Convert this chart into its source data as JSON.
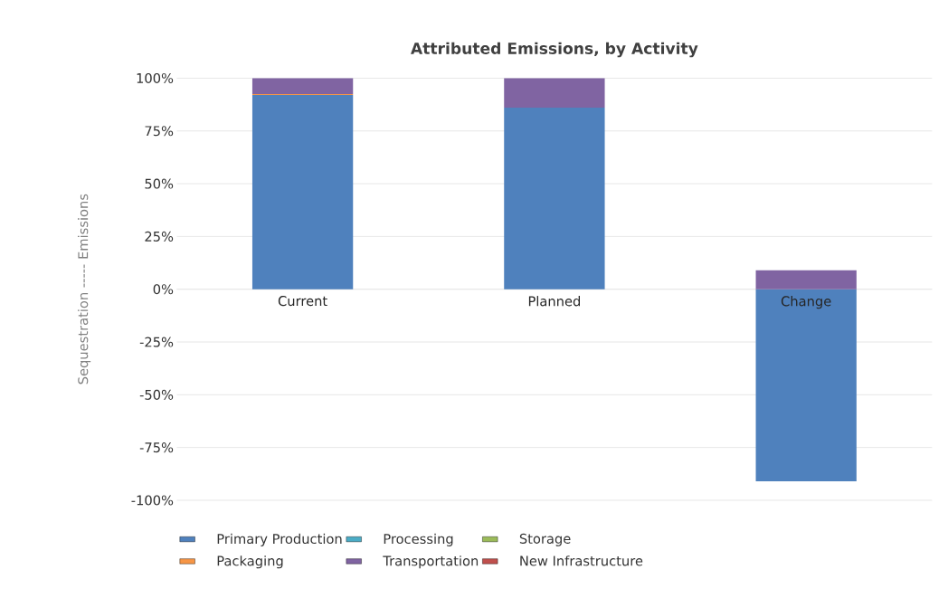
{
  "chart_data": {
    "type": "bar",
    "stacked": true,
    "title": "Attributed Emissions, by Activity",
    "ylabel": "Sequestration ----- Emissions",
    "categories": [
      "Current",
      "Planned",
      "Change"
    ],
    "series": [
      {
        "name": "Primary Production",
        "color": "#4f81bd",
        "values": [
          92,
          86,
          -91
        ]
      },
      {
        "name": "Processing",
        "color": "#4bacc6",
        "values": [
          0,
          0,
          0
        ]
      },
      {
        "name": "Storage",
        "color": "#9bbb59",
        "values": [
          0,
          0,
          0
        ]
      },
      {
        "name": "Packaging",
        "color": "#f79646",
        "values": [
          0.5,
          0,
          0
        ]
      },
      {
        "name": "Transportation",
        "color": "#8064a2",
        "values": [
          7.5,
          14,
          9
        ]
      },
      {
        "name": "New Infrastructure",
        "color": "#c0504d",
        "values": [
          0,
          0,
          0
        ]
      }
    ],
    "ylim": [
      -100,
      100
    ],
    "yticks": [
      {
        "value": -100,
        "label": "-100%"
      },
      {
        "value": -75,
        "label": "-75%"
      },
      {
        "value": -50,
        "label": "-50%"
      },
      {
        "value": -25,
        "label": "-25%"
      },
      {
        "value": 0,
        "label": "0%"
      },
      {
        "value": 25,
        "label": "25%"
      },
      {
        "value": 50,
        "label": "50%"
      },
      {
        "value": 75,
        "label": "75%"
      },
      {
        "value": 100,
        "label": "100%"
      }
    ],
    "grid": "y",
    "legend": "bottom"
  }
}
